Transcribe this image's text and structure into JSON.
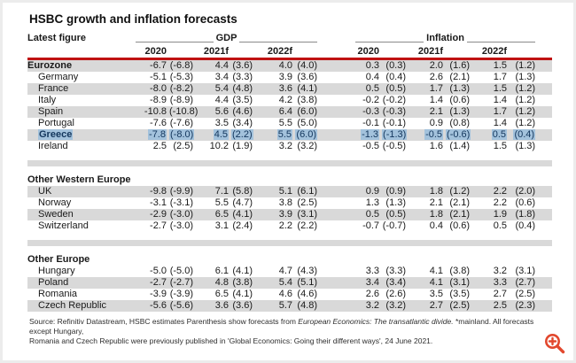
{
  "title": "HSBC growth and inflation forecasts",
  "table": {
    "corner_label": "Latest figure",
    "groups": [
      {
        "label": "GDP"
      },
      {
        "label": "Inflation"
      }
    ],
    "year_columns": [
      "2020",
      "2021f",
      "2022f"
    ],
    "sections": [
      {
        "header": null,
        "rows": [
          {
            "name": "Eurozone",
            "bold": true,
            "indent": false,
            "shaded": true,
            "highlighted": false,
            "values": [
              "-6.7",
              "(-6.8)",
              "4.4",
              "(3.6)",
              "4.0",
              "(4.0)",
              "0.3",
              "(0.3)",
              "2.0",
              "(1.6)",
              "1.5",
              "(1.2)"
            ]
          },
          {
            "name": "Germany",
            "bold": false,
            "indent": true,
            "shaded": false,
            "highlighted": false,
            "values": [
              "-5.1",
              "(-5.3)",
              "3.4",
              "(3.3)",
              "3.9",
              "(3.6)",
              "0.4",
              "(0.4)",
              "2.6",
              "(2.1)",
              "1.7",
              "(1.3)"
            ]
          },
          {
            "name": "France",
            "bold": false,
            "indent": true,
            "shaded": true,
            "highlighted": false,
            "values": [
              "-8.0",
              "(-8.2)",
              "5.4",
              "(4.8)",
              "3.6",
              "(4.1)",
              "0.5",
              "(0.5)",
              "1.7",
              "(1.3)",
              "1.5",
              "(1.2)"
            ]
          },
          {
            "name": "Italy",
            "bold": false,
            "indent": true,
            "shaded": false,
            "highlighted": false,
            "values": [
              "-8.9",
              "(-8.9)",
              "4.4",
              "(3.5)",
              "4.2",
              "(3.8)",
              "-0.2",
              "(-0.2)",
              "1.4",
              "(0.6)",
              "1.4",
              "(1.2)"
            ]
          },
          {
            "name": "Spain",
            "bold": false,
            "indent": true,
            "shaded": true,
            "highlighted": false,
            "values": [
              "-10.8",
              "(-10.8)",
              "5.6",
              "(4.6)",
              "6.4",
              "(6.0)",
              "-0.3",
              "(-0.3)",
              "2.1",
              "(1.3)",
              "1.7",
              "(1.2)"
            ]
          },
          {
            "name": "Portugal",
            "bold": false,
            "indent": true,
            "shaded": false,
            "highlighted": false,
            "values": [
              "-7.6",
              "(-7.6)",
              "3.5",
              "(3.4)",
              "5.5",
              "(5.0)",
              "-0.1",
              "(-0.1)",
              "0.9",
              "(0.8)",
              "1.4",
              "(1.2)"
            ]
          },
          {
            "name": "Greece",
            "bold": false,
            "indent": true,
            "shaded": true,
            "highlighted": true,
            "values": [
              "-7.8",
              "(-8.0)",
              "4.5",
              "(2.2)",
              "5.5",
              "(6.0)",
              "-1.3",
              "(-1.3)",
              "-0.5",
              "(-0.6)",
              "0.5",
              "(0.4)"
            ]
          },
          {
            "name": "Ireland",
            "bold": false,
            "indent": true,
            "shaded": false,
            "highlighted": false,
            "values": [
              "2.5",
              "(2.5)",
              "10.2",
              "(1.9)",
              "3.2",
              "(3.2)",
              "-0.5",
              "(-0.5)",
              "1.6",
              "(1.4)",
              "1.5",
              "(1.3)"
            ]
          }
        ]
      },
      {
        "header": "Other Western Europe",
        "rows": [
          {
            "name": "UK",
            "bold": false,
            "indent": true,
            "shaded": true,
            "highlighted": false,
            "values": [
              "-9.8",
              "(-9.9)",
              "7.1",
              "(5.8)",
              "5.1",
              "(6.1)",
              "0.9",
              "(0.9)",
              "1.8",
              "(1.2)",
              "2.2",
              "(2.0)"
            ]
          },
          {
            "name": "Norway",
            "bold": false,
            "indent": true,
            "shaded": false,
            "highlighted": false,
            "values": [
              "-3.1",
              "(-3.1)",
              "5.5",
              "(4.7)",
              "3.8",
              "(2.5)",
              "1.3",
              "(1.3)",
              "2.1",
              "(2.1)",
              "2.2",
              "(0.6)"
            ]
          },
          {
            "name": "Sweden",
            "bold": false,
            "indent": true,
            "shaded": true,
            "highlighted": false,
            "values": [
              "-2.9",
              "(-3.0)",
              "6.5",
              "(4.1)",
              "3.9",
              "(3.1)",
              "0.5",
              "(0.5)",
              "1.8",
              "(2.1)",
              "1.9",
              "(1.8)"
            ]
          },
          {
            "name": "Switzerland",
            "bold": false,
            "indent": true,
            "shaded": false,
            "highlighted": false,
            "values": [
              "-2.7",
              "(-3.0)",
              "3.1",
              "(2.4)",
              "2.2",
              "(2.2)",
              "-0.7",
              "(-0.7)",
              "0.4",
              "(0.6)",
              "0.5",
              "(0.4)"
            ]
          }
        ]
      },
      {
        "header": "Other Europe",
        "rows": [
          {
            "name": "Hungary",
            "bold": false,
            "indent": true,
            "shaded": false,
            "highlighted": false,
            "values": [
              "-5.0",
              "(-5.0)",
              "6.1",
              "(4.1)",
              "4.7",
              "(4.3)",
              "3.3",
              "(3.3)",
              "4.1",
              "(3.8)",
              "3.2",
              "(3.1)"
            ]
          },
          {
            "name": "Poland",
            "bold": false,
            "indent": true,
            "shaded": true,
            "highlighted": false,
            "values": [
              "-2.7",
              "(-2.7)",
              "4.8",
              "(3.8)",
              "5.4",
              "(5.1)",
              "3.4",
              "(3.4)",
              "4.1",
              "(3.1)",
              "3.3",
              "(2.7)"
            ]
          },
          {
            "name": "Romania",
            "bold": false,
            "indent": true,
            "shaded": false,
            "highlighted": false,
            "values": [
              "-3.9",
              "(-3.9)",
              "6.5",
              "(4.1)",
              "4.6",
              "(4.6)",
              "2.6",
              "(2.6)",
              "3.5",
              "(3.5)",
              "2.7",
              "(2.5)"
            ]
          },
          {
            "name": "Czech Republic",
            "bold": false,
            "indent": true,
            "shaded": true,
            "highlighted": false,
            "values": [
              "-5.6",
              "(-5.6)",
              "3.6",
              "(3.6)",
              "5.7",
              "(4.8)",
              "3.2",
              "(3.2)",
              "2.7",
              "(2.5)",
              "2.5",
              "(2.3)"
            ]
          }
        ]
      }
    ]
  },
  "footer": {
    "line1_prefix": "Source: Refinitiv Datastream, HSBC estimates   Parenthesis show forecasts from ",
    "line1_italic": "European Economics: The transatlantic divide.",
    "line1_suffix": " *mainland. All forecasts except Hungary,",
    "line2": "Romania and Czech Republic were previously published in 'Global Economics: Going their different ways', 24 June 2021."
  },
  "icons": {
    "zoom_in": "zoom-in-magnifier-plus"
  },
  "colors": {
    "rule_red": "#bf1212",
    "stripe_gray": "#d9d9d9",
    "highlight_blue": "#a3c2dc",
    "highlight_text": "#13365c",
    "icon_orange": "#e2482e"
  }
}
